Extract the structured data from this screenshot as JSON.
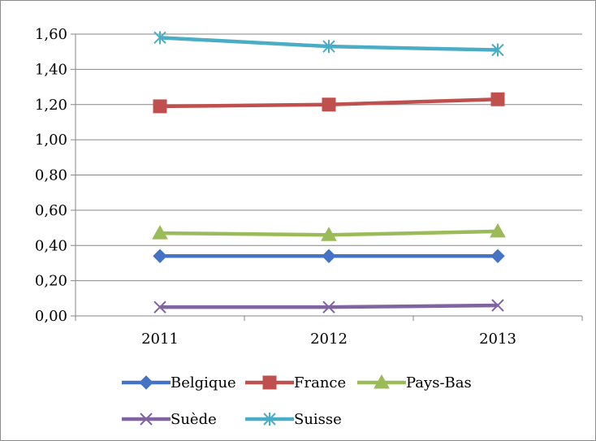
{
  "chart_data": {
    "type": "line",
    "categories": [
      "2011",
      "2012",
      "2013"
    ],
    "y_tick_labels": [
      "0,00",
      "0,20",
      "0,40",
      "0,60",
      "0,80",
      "1,00",
      "1,20",
      "1,40",
      "1,60"
    ],
    "ylim": [
      0,
      1.6
    ],
    "grid": true,
    "legend_position": "bottom",
    "series": [
      {
        "name": "Belgique",
        "values": [
          0.34,
          0.34,
          0.34
        ],
        "color": "#4472C4",
        "marker": "diamond"
      },
      {
        "name": "France",
        "values": [
          1.19,
          1.2,
          1.23
        ],
        "color": "#C0504D",
        "marker": "square"
      },
      {
        "name": "Pays-Bas",
        "values": [
          0.47,
          0.46,
          0.48
        ],
        "color": "#9BBB59",
        "marker": "triangle"
      },
      {
        "name": "Suède",
        "values": [
          0.05,
          0.05,
          0.06
        ],
        "color": "#8064A2",
        "marker": "x"
      },
      {
        "name": "Suisse",
        "values": [
          1.58,
          1.53,
          1.51
        ],
        "color": "#4BACC6",
        "marker": "star"
      }
    ]
  }
}
